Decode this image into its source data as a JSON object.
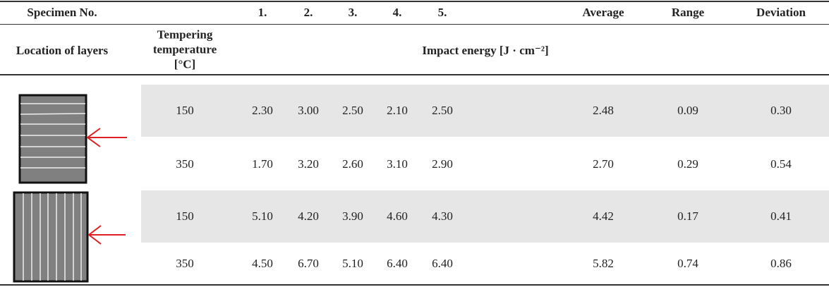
{
  "header": {
    "columns": [
      "Specimen No.",
      "1.",
      "2.",
      "3.",
      "4.",
      "5.",
      "Average",
      "Range",
      "Deviation"
    ]
  },
  "subheader": {
    "location": "Location of layers",
    "temperature": "Tempering temperature [°C]",
    "impact": "Impact energy [J · cm⁻²]"
  },
  "table": {
    "rows": [
      [
        "150",
        "2.30",
        "3.00",
        "2.50",
        "2.10",
        "2.50",
        "2.48",
        "0.09",
        "0.30"
      ],
      [
        "350",
        "1.70",
        "3.20",
        "2.60",
        "3.10",
        "2.90",
        "2.70",
        "0.29",
        "0.54"
      ],
      [
        "150",
        "5.10",
        "4.20",
        "3.90",
        "4.60",
        "4.30",
        "4.42",
        "0.17",
        "0.41"
      ],
      [
        "350",
        "4.50",
        "6.70",
        "5.10",
        "6.40",
        "6.40",
        "5.82",
        "0.74",
        "0.86"
      ]
    ]
  }
}
